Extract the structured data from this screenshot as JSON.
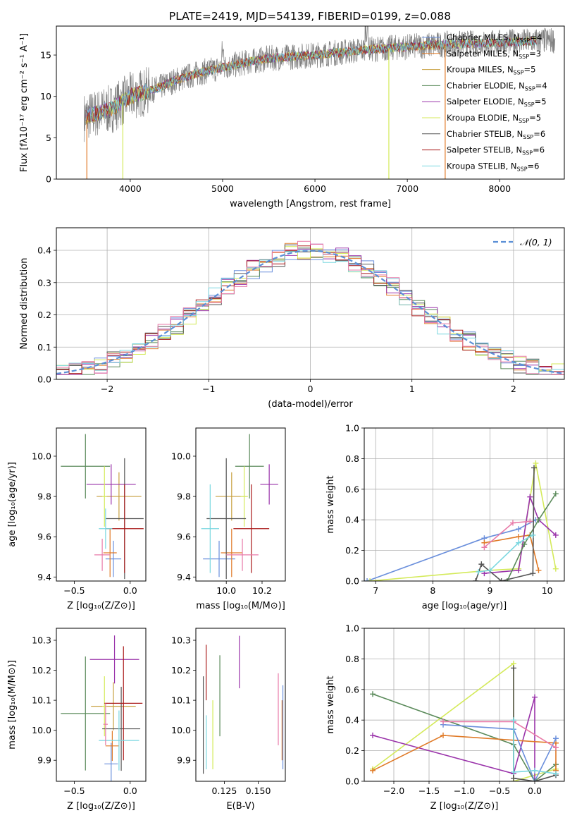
{
  "figure_title": "PLATE=2419, MJD=54139, FIBERID=0199, z=0.088",
  "colors": {
    "Chabrier MILES": "#6a8fdc",
    "Salpeter MILES": "#e07a27",
    "Kroupa MILES": "#c8a040",
    "Chabrier ELODIE": "#5a8a5a",
    "Salpeter ELODIE": "#9a33aa",
    "Kroupa ELODIE": "#d4ea5a",
    "Chabrier STELIB": "#555555",
    "Salpeter STELIB": "#aa1a1a",
    "Kroupa STELIB": "#7ad7e0",
    "pink": "#e87aa8",
    "data": "#808080",
    "normal": "#5b8fd6"
  },
  "chart_data": [
    {
      "id": "spectrum",
      "type": "line",
      "title": "PLATE=2419, MJD=54139, FIBERID=0199, z=0.088",
      "xlabel": "wavelength [Angstrom, rest frame]",
      "ylabel": "Flux [fλ10⁻¹⁷ erg cm⁻² s⁻¹ A⁻¹]",
      "xlim": [
        3200,
        8700
      ],
      "ylim": [
        0,
        18.5
      ],
      "xticks": [
        "4000",
        "5000",
        "6000",
        "7000",
        "8000"
      ],
      "yticks": [
        "0",
        "5",
        "10",
        "15"
      ],
      "legend": [
        {
          "name": "Chabrier MILES",
          "sub": "4"
        },
        {
          "name": "Salpeter MILES",
          "sub": "3"
        },
        {
          "name": "Kroupa MILES",
          "sub": "5"
        },
        {
          "name": "Chabrier ELODIE",
          "sub": "4"
        },
        {
          "name": "Salpeter ELODIE",
          "sub": "5"
        },
        {
          "name": "Kroupa ELODIE",
          "sub": "5"
        },
        {
          "name": "Chabrier STELIB",
          "sub": "6"
        },
        {
          "name": "Salpeter STELIB",
          "sub": "6"
        },
        {
          "name": "Kroupa STELIB",
          "sub": "6"
        }
      ],
      "legend_placement": "right",
      "continuum": [
        [
          3500,
          7.5
        ],
        [
          3800,
          8.5
        ],
        [
          4000,
          10.0
        ],
        [
          4300,
          11.0
        ],
        [
          4500,
          12.0
        ],
        [
          4800,
          13.0
        ],
        [
          5000,
          13.5
        ],
        [
          5300,
          14.2
        ],
        [
          5500,
          14.6
        ],
        [
          6000,
          15.0
        ],
        [
          6500,
          15.6
        ],
        [
          7000,
          16.0
        ],
        [
          7400,
          16.3
        ],
        [
          8000,
          16.5
        ],
        [
          8600,
          16.8
        ]
      ]
    },
    {
      "id": "residuals",
      "type": "bar",
      "xlabel": "(data-model)/error",
      "ylabel": "Normed distribution",
      "xlim": [
        -2.5,
        2.5
      ],
      "ylim": [
        0,
        0.47
      ],
      "xticks": [
        "−2",
        "−1",
        "0",
        "1",
        "2"
      ],
      "yticks": [
        "0.0",
        "0.1",
        "0.2",
        "0.3",
        "0.4"
      ],
      "legend": "𝒩(0, 1)",
      "legend_placement": "top-right",
      "grid": true
    },
    {
      "id": "age-vs-z",
      "type": "scatter",
      "xlabel": "Z [log₁₀(Z/Z⊙)]",
      "ylabel": "age  [log₁₀(age/yr)]",
      "xlim": [
        -0.66,
        0.14
      ],
      "ylim": [
        9.38,
        10.14
      ],
      "xticks": [
        "−0.5",
        "0.0"
      ],
      "yticks": [
        "9.4",
        "9.6",
        "9.8",
        "10.0"
      ],
      "points": [
        {
          "c": "Chabrier MILES",
          "x": -0.15,
          "y": 9.49,
          "xe": 0.07,
          "ye": 0.09
        },
        {
          "c": "Salpeter MILES",
          "x": -0.18,
          "y": 9.52,
          "xe": 0.06,
          "ye": 0.12
        },
        {
          "c": "Kroupa MILES",
          "x": -0.1,
          "y": 9.8,
          "xe": 0.2,
          "ye": 0.12
        },
        {
          "c": "Chabrier ELODIE",
          "x": -0.4,
          "y": 9.95,
          "xe": 0.22,
          "ye": 0.16
        },
        {
          "c": "Salpeter ELODIE",
          "x": -0.17,
          "y": 9.86,
          "xe": 0.22,
          "ye": 0.1
        },
        {
          "c": "Kroupa ELODIE",
          "x": -0.23,
          "y": 9.8,
          "xe": 0.02,
          "ye": 0.15
        },
        {
          "c": "Chabrier STELIB",
          "x": -0.05,
          "y": 9.69,
          "xe": 0.17,
          "ye": 0.3
        },
        {
          "c": "Salpeter STELIB",
          "x": -0.05,
          "y": 9.64,
          "xe": 0.17,
          "ye": 0.22
        },
        {
          "c": "Kroupa STELIB",
          "x": -0.22,
          "y": 9.64,
          "xe": 0.06,
          "ye": 0.1
        },
        {
          "c": "pink",
          "x": -0.25,
          "y": 9.51,
          "xe": 0.07,
          "ye": 0.08
        }
      ]
    },
    {
      "id": "age-vs-mass",
      "type": "scatter",
      "xlabel": "mass [log₁₀(M/M⊙)]",
      "ylabel": "",
      "xlim": [
        9.83,
        10.33
      ],
      "ylim": [
        9.38,
        10.14
      ],
      "xticks": [
        "10.0",
        "10.2"
      ],
      "yticks": [
        "9.4",
        "9.6",
        "9.8",
        "10.0"
      ],
      "points": [
        {
          "c": "Chabrier MILES",
          "x": 9.96,
          "y": 9.49,
          "xe": 0.09,
          "ye": 0.09
        },
        {
          "c": "Salpeter MILES",
          "x": 10.03,
          "y": 9.52,
          "xe": 0.06,
          "ye": 0.12
        },
        {
          "c": "Kroupa MILES",
          "x": 10.03,
          "y": 9.8,
          "xe": 0.09,
          "ye": 0.12
        },
        {
          "c": "Chabrier ELODIE",
          "x": 10.13,
          "y": 9.95,
          "xe": 0.08,
          "ye": 0.16
        },
        {
          "c": "Salpeter ELODIE",
          "x": 10.24,
          "y": 9.86,
          "xe": 0.05,
          "ye": 0.1
        },
        {
          "c": "Kroupa ELODIE",
          "x": 10.1,
          "y": 9.8,
          "xe": 0.02,
          "ye": 0.15
        },
        {
          "c": "Chabrier STELIB",
          "x": 10.0,
          "y": 9.69,
          "xe": 0.11,
          "ye": 0.3
        },
        {
          "c": "Salpeter STELIB",
          "x": 10.14,
          "y": 9.64,
          "xe": 0.1,
          "ye": 0.22
        },
        {
          "c": "Kroupa STELIB",
          "x": 9.91,
          "y": 9.64,
          "xe": 0.05,
          "ye": 0.22
        },
        {
          "c": "pink",
          "x": 10.09,
          "y": 9.51,
          "xe": 0.09,
          "ye": 0.08
        }
      ]
    },
    {
      "id": "weight-vs-age",
      "type": "line",
      "xlabel": "age  [log₁₀(age/yr)]",
      "ylabel": "mass weight",
      "xlim": [
        6.8,
        10.3
      ],
      "ylim": [
        0,
        1.0
      ],
      "xticks": [
        "7",
        "8",
        "9",
        "10"
      ],
      "yticks": [
        "0.0",
        "0.2",
        "0.4",
        "0.6",
        "0.8",
        "1.0"
      ],
      "grid": true,
      "series": [
        {
          "c": "Chabrier MILES",
          "pts": [
            [
              6.85,
              0.0
            ],
            [
              8.9,
              0.28
            ],
            [
              9.5,
              0.34
            ],
            [
              9.8,
              0.4
            ]
          ]
        },
        {
          "c": "Salpeter MILES",
          "pts": [
            [
              8.9,
              0.25
            ],
            [
              9.5,
              0.29
            ],
            [
              9.7,
              0.3
            ],
            [
              9.85,
              0.07
            ]
          ]
        },
        {
          "c": "Kroupa ELODIE",
          "pts": [
            [
              6.9,
              0.0
            ],
            [
              9.0,
              0.07
            ],
            [
              9.5,
              0.08
            ],
            [
              9.8,
              0.77
            ],
            [
              10.15,
              0.08
            ]
          ]
        },
        {
          "c": "Salpeter ELODIE",
          "pts": [
            [
              8.9,
              0.05
            ],
            [
              9.5,
              0.07
            ],
            [
              9.7,
              0.55
            ],
            [
              9.85,
              0.4
            ],
            [
              10.15,
              0.3
            ]
          ]
        },
        {
          "c": "Chabrier ELODIE",
          "pts": [
            [
              9.3,
              0.0
            ],
            [
              9.6,
              0.24
            ],
            [
              9.85,
              0.4
            ],
            [
              10.15,
              0.57
            ]
          ]
        },
        {
          "c": "Chabrier STELIB",
          "pts": [
            [
              8.75,
              0.0
            ],
            [
              8.85,
              0.11
            ],
            [
              9.2,
              0.0
            ],
            [
              9.75,
              0.05
            ],
            [
              9.77,
              0.74
            ]
          ]
        },
        {
          "c": "pink",
          "pts": [
            [
              8.9,
              0.22
            ],
            [
              9.4,
              0.38
            ],
            [
              9.7,
              0.39
            ]
          ]
        },
        {
          "c": "Kroupa STELIB",
          "pts": [
            [
              8.8,
              0.06
            ],
            [
              9.0,
              0.07
            ],
            [
              9.5,
              0.25
            ],
            [
              9.75,
              0.3
            ]
          ]
        }
      ]
    },
    {
      "id": "mass-vs-z",
      "type": "scatter",
      "xlabel": "Z [log₁₀(Z/Z⊙)]",
      "ylabel": "mass [log₁₀(M/M⊙)]",
      "xlim": [
        -0.66,
        0.14
      ],
      "ylim": [
        9.83,
        10.34
      ],
      "xticks": [
        "−0.5",
        "0.0"
      ],
      "yticks": [
        "9.9",
        "10.0",
        "10.1",
        "10.2",
        "10.3"
      ],
      "points": [
        {
          "c": "Chabrier MILES",
          "x": -0.17,
          "y": 9.888,
          "xe": 0.06,
          "ye": 0.07
        },
        {
          "c": "Salpeter MILES",
          "x": -0.16,
          "y": 9.948,
          "xe": 0.06,
          "ye": 0.05
        },
        {
          "c": "Kroupa MILES",
          "x": -0.15,
          "y": 10.08,
          "xe": 0.2,
          "ye": 0.08
        },
        {
          "c": "Chabrier ELODIE",
          "x": -0.4,
          "y": 10.056,
          "xe": 0.22,
          "ye": 0.19
        },
        {
          "c": "Salpeter ELODIE",
          "x": -0.14,
          "y": 10.236,
          "xe": 0.22,
          "ye": 0.08
        },
        {
          "c": "Kroupa ELODIE",
          "x": -0.23,
          "y": 10.08,
          "xe": 0.02,
          "ye": 0.1
        },
        {
          "c": "Chabrier STELIB",
          "x": -0.08,
          "y": 10.005,
          "xe": 0.17,
          "ye": 0.14
        },
        {
          "c": "Salpeter STELIB",
          "x": -0.06,
          "y": 10.09,
          "xe": 0.17,
          "ye": 0.19
        },
        {
          "c": "Kroupa STELIB",
          "x": -0.1,
          "y": 9.966,
          "xe": 0.18,
          "ye": 0.1
        },
        {
          "c": "pink",
          "x": -0.22,
          "y": 10.02,
          "xe": 0.02,
          "ye": 0.07
        }
      ]
    },
    {
      "id": "mass-vs-ebv",
      "type": "scatter",
      "xlabel": "E(B-V)",
      "ylabel": "",
      "xlim": [
        0.104,
        0.17
      ],
      "ylim": [
        9.83,
        10.34
      ],
      "xticks": [
        "0.125",
        "0.150"
      ],
      "yticks": [
        "9.9",
        "10.0",
        "10.1",
        "10.2",
        "10.3"
      ],
      "vbars": [
        {
          "c": "Chabrier STELIB",
          "x": 0.1095,
          "y0": 9.855,
          "y1": 10.18
        },
        {
          "c": "Salpeter STELIB",
          "x": 0.1116,
          "y0": 10.1,
          "y1": 10.285
        },
        {
          "c": "Kroupa STELIB",
          "x": 0.1117,
          "y0": 9.87,
          "y1": 10.05
        },
        {
          "c": "Kroupa ELODIE",
          "x": 0.1165,
          "y0": 9.87,
          "y1": 10.1
        },
        {
          "c": "Chabrier ELODIE",
          "x": 0.1217,
          "y0": 9.98,
          "y1": 10.25
        },
        {
          "c": "Salpeter ELODIE",
          "x": 0.1361,
          "y0": 10.14,
          "y1": 10.315
        },
        {
          "c": "pink",
          "x": 0.1648,
          "y0": 9.95,
          "y1": 10.19
        },
        {
          "c": "Salpeter MILES",
          "x": 0.1676,
          "y0": 9.9,
          "y1": 10.1
        },
        {
          "c": "Chabrier MILES",
          "x": 0.1682,
          "y0": 9.87,
          "y1": 10.15
        }
      ]
    },
    {
      "id": "weight-vs-z",
      "type": "line",
      "xlabel": "Z [log₁₀(Z/Z⊙)]",
      "ylabel": "mass weight",
      "xlim": [
        -2.42,
        0.42
      ],
      "ylim": [
        0,
        1.0
      ],
      "xticks": [
        "−2.0",
        "−1.5",
        "−1.0",
        "−0.5",
        "0.0"
      ],
      "yticks": [
        "0.0",
        "0.2",
        "0.4",
        "0.6",
        "0.8",
        "1.0"
      ],
      "grid": true,
      "series": [
        {
          "c": "Kroupa ELODIE",
          "pts": [
            [
              -2.3,
              0.08
            ],
            [
              -0.3,
              0.77
            ],
            [
              -0.3,
              0.0
            ],
            [
              0.3,
              0.08
            ]
          ]
        },
        {
          "c": "Chabrier ELODIE",
          "pts": [
            [
              -2.3,
              0.57
            ],
            [
              -0.3,
              0.24
            ],
            [
              0.0,
              0.0
            ],
            [
              0.3,
              0.11
            ]
          ]
        },
        {
          "c": "Salpeter ELODIE",
          "pts": [
            [
              -2.3,
              0.3
            ],
            [
              -0.3,
              0.05
            ],
            [
              0.0,
              0.55
            ],
            [
              0.0,
              0.0
            ]
          ]
        },
        {
          "c": "Salpeter MILES",
          "pts": [
            [
              -2.3,
              0.07
            ],
            [
              -1.3,
              0.3
            ],
            [
              0.3,
              0.25
            ],
            [
              0.3,
              0.07
            ]
          ]
        },
        {
          "c": "Chabrier MILES",
          "pts": [
            [
              -1.3,
              0.37
            ],
            [
              -0.3,
              0.34
            ],
            [
              0.0,
              0.0
            ],
            [
              0.3,
              0.28
            ]
          ]
        },
        {
          "c": "pink",
          "pts": [
            [
              -1.3,
              0.39
            ],
            [
              -0.3,
              0.39
            ],
            [
              0.3,
              0.22
            ]
          ]
        },
        {
          "c": "Chabrier STELIB",
          "pts": [
            [
              -0.3,
              0.74
            ],
            [
              -0.3,
              0.02
            ],
            [
              0.0,
              0.0
            ],
            [
              0.3,
              0.04
            ]
          ]
        },
        {
          "c": "Kroupa STELIB",
          "pts": [
            [
              -0.3,
              0.4
            ],
            [
              -0.3,
              0.06
            ],
            [
              0.0,
              0.07
            ],
            [
              0.3,
              0.05
            ]
          ]
        }
      ]
    }
  ]
}
